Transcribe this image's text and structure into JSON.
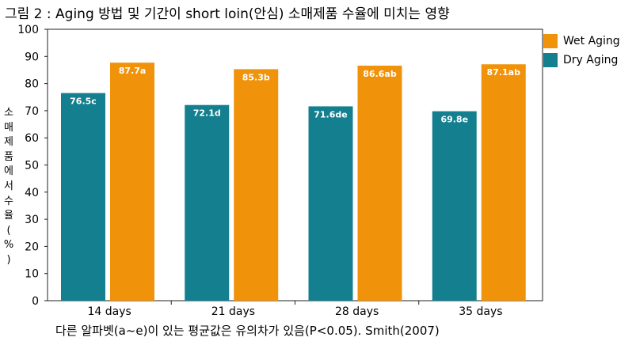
{
  "title": "그림 2 : Aging 방법 및 기간이 short loin(안심) 소매제품 수율에 미치는 영향",
  "footnote": "다른 알파벳(a~e)이 있는 평균값은 유의차가 있음(P<0.05). Smith(2007)",
  "chart_data": {
    "type": "bar",
    "title": "그림 2 : Aging 방법 및 기간이 short loin(안심) 소매제품 수율에 미치는 영향",
    "xlabel": "",
    "ylabel": "소매제품에서수율(%)",
    "ylim": [
      0,
      100
    ],
    "yticks": [
      0,
      10,
      20,
      30,
      40,
      50,
      60,
      70,
      80,
      90,
      100
    ],
    "grid": false,
    "legend_position": "top-right",
    "categories": [
      "14 days",
      "21 days",
      "28 days",
      "35 days"
    ],
    "series": [
      {
        "name": "Dry Aging",
        "color": "#137f8f",
        "values": [
          76.5,
          72.1,
          71.6,
          69.8
        ],
        "labels": [
          "76.5c",
          "72.1d",
          "71.6de",
          "69.8e"
        ]
      },
      {
        "name": "Wet Aging",
        "color": "#f0930a",
        "values": [
          87.7,
          85.3,
          86.6,
          87.1
        ],
        "labels": [
          "87.7a",
          "85.3b",
          "86.6ab",
          "87.1ab"
        ]
      }
    ]
  }
}
